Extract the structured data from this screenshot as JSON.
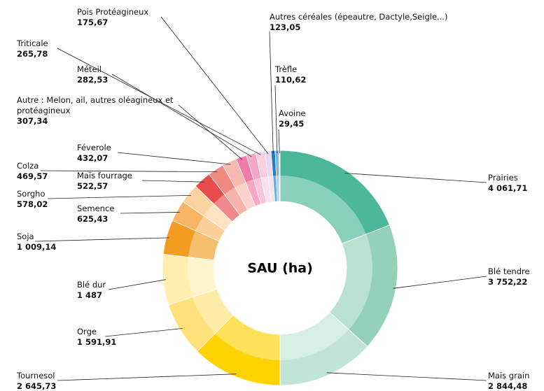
{
  "chart_data": {
    "type": "donut",
    "title": "SAU (ha)",
    "categories": [
      "Prairies",
      "Blé tendre",
      "Maïs grain",
      "Tournesol",
      "Orge",
      "Blé dur",
      "Soja",
      "Semence",
      "Sorgho",
      "Maïs fourrage",
      "Colza",
      "Féverole",
      "Autre : Melon, ail, autres oléagineux et protéagineux",
      "Méteil",
      "Triticale",
      "Pois Protéagineux",
      "Autres céréales (épeautre, Dactyle,Seigle...)",
      "Trèfle",
      "Avoine"
    ],
    "values": [
      4061.71,
      3752.22,
      2844.48,
      2645.73,
      1591.91,
      1487,
      1009.14,
      625.43,
      578.02,
      522.57,
      469.57,
      432.07,
      307.34,
      282.53,
      265.78,
      175.67,
      123.05,
      110.62,
      29.45
    ],
    "value_labels": [
      "4 061,71",
      "3 752,22",
      "2 844,48",
      "2 645,73",
      "1 591,91",
      "1 487",
      "1 009,14",
      "625,43",
      "578,02",
      "522,57",
      "469,57",
      "432,07",
      "307,34",
      "282,53",
      "265,78",
      "175,67",
      "123,05",
      "110,62",
      "29,45"
    ],
    "colors": [
      "#4cb89a",
      "#94d1b8",
      "#c0e5d6",
      "#ffd200",
      "#ffe07a",
      "#ffeeb0",
      "#f39c1f",
      "#f7b563",
      "#fbd3a0",
      "#e84c4c",
      "#f08a80",
      "#f7b8b0",
      "#f07aa8",
      "#f5a8c6",
      "#fad0e0",
      "#ead6ee",
      "#1f7fc0",
      "#7fb4e0",
      "#c8dcf0"
    ]
  }
}
